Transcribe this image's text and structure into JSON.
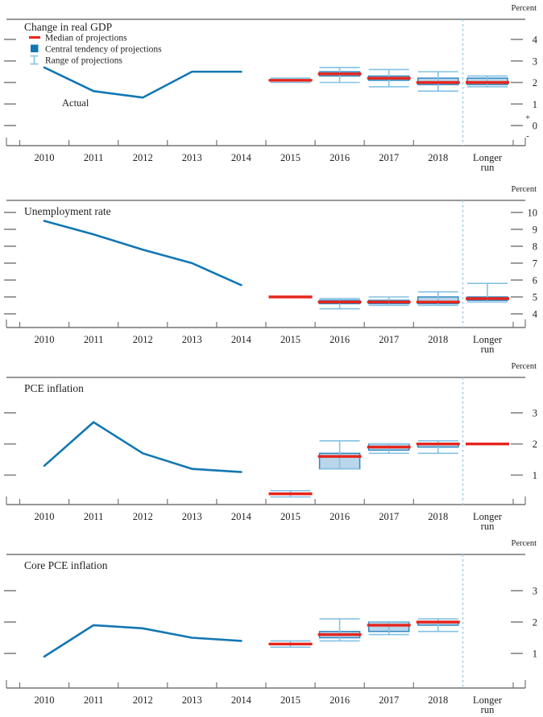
{
  "page": {
    "percent_label": "Percent",
    "plus_sign": "+",
    "minus_sign": "-"
  },
  "x_axis": {
    "years": [
      "2010",
      "2011",
      "2012",
      "2013",
      "2014",
      "2015",
      "2016",
      "2017",
      "2018"
    ],
    "longer_run_line1": "Longer",
    "longer_run_line2": "run"
  },
  "legend": {
    "median": "Median of projections",
    "central_tendency": "Central tendency of projections",
    "range": "Range of projections"
  },
  "colors": {
    "actual_line": "#1277b3",
    "median": "#e6251c",
    "box_fill": "#b9d6ea",
    "box_edge": "#3289c2",
    "whisker": "#82c2e4",
    "dashed_line": "#9fcde9",
    "axis": "#757575",
    "dash": "#8a8a8a",
    "text": "#1f1f1f"
  },
  "chart_data": [
    {
      "type": "line+boxplot",
      "title": "Change in real GDP",
      "unit": "Percent",
      "y_ticks": [
        4,
        3,
        2,
        1,
        0
      ],
      "zero_plus_minus": true,
      "actual": {
        "label": "Actual",
        "years": [
          "2010",
          "2011",
          "2012",
          "2013",
          "2014"
        ],
        "values": [
          2.7,
          1.6,
          1.3,
          2.5,
          2.5
        ]
      },
      "projections": [
        {
          "year": "2015",
          "median": 2.1,
          "central_tendency": [
            2.1,
            2.1
          ],
          "range": [
            2.0,
            2.2
          ]
        },
        {
          "year": "2016",
          "median": 2.4,
          "central_tendency": [
            2.3,
            2.5
          ],
          "range": [
            2.0,
            2.7
          ]
        },
        {
          "year": "2017",
          "median": 2.2,
          "central_tendency": [
            2.1,
            2.3
          ],
          "range": [
            1.8,
            2.6
          ]
        },
        {
          "year": "2018",
          "median": 2.0,
          "central_tendency": [
            1.9,
            2.2
          ],
          "range": [
            1.6,
            2.5
          ]
        },
        {
          "year": "Longer run",
          "median": 2.0,
          "central_tendency": [
            1.9,
            2.2
          ],
          "range": [
            1.8,
            2.3
          ]
        }
      ]
    },
    {
      "type": "line+boxplot",
      "title": "Unemployment rate",
      "unit": "Percent",
      "y_ticks": [
        10,
        9,
        8,
        7,
        6,
        5,
        4
      ],
      "zero_plus_minus": false,
      "actual": {
        "label": "",
        "years": [
          "2010",
          "2011",
          "2012",
          "2013",
          "2014"
        ],
        "values": [
          9.5,
          8.7,
          7.8,
          7.0,
          5.7
        ]
      },
      "projections": [
        {
          "year": "2015",
          "median": 5.0,
          "central_tendency": null,
          "range": null
        },
        {
          "year": "2016",
          "median": 4.7,
          "central_tendency": [
            4.6,
            4.8
          ],
          "range": [
            4.3,
            4.9
          ]
        },
        {
          "year": "2017",
          "median": 4.7,
          "central_tendency": [
            4.6,
            4.8
          ],
          "range": [
            4.5,
            5.0
          ]
        },
        {
          "year": "2018",
          "median": 4.7,
          "central_tendency": [
            4.6,
            5.0
          ],
          "range": [
            4.5,
            5.3
          ]
        },
        {
          "year": "Longer run",
          "median": 4.9,
          "central_tendency": [
            4.8,
            5.0
          ],
          "range": [
            4.7,
            5.8
          ]
        }
      ]
    },
    {
      "type": "line+boxplot",
      "title": "PCE inflation",
      "unit": "Percent",
      "y_ticks": [
        3,
        2,
        1
      ],
      "zero_plus_minus": false,
      "actual": {
        "label": "",
        "years": [
          "2010",
          "2011",
          "2012",
          "2013",
          "2014"
        ],
        "values": [
          1.3,
          2.7,
          1.7,
          1.2,
          1.1
        ]
      },
      "projections": [
        {
          "year": "2015",
          "median": 0.4,
          "central_tendency": [
            0.4,
            0.4
          ],
          "range": [
            0.3,
            0.5
          ]
        },
        {
          "year": "2016",
          "median": 1.6,
          "central_tendency": [
            1.2,
            1.7
          ],
          "range": [
            1.2,
            2.1
          ]
        },
        {
          "year": "2017",
          "median": 1.9,
          "central_tendency": [
            1.8,
            2.0
          ],
          "range": [
            1.7,
            2.0
          ]
        },
        {
          "year": "2018",
          "median": 2.0,
          "central_tendency": [
            1.9,
            2.0
          ],
          "range": [
            1.7,
            2.1
          ]
        },
        {
          "year": "Longer run",
          "median": 2.0,
          "central_tendency": null,
          "range": null
        }
      ]
    },
    {
      "type": "line+boxplot",
      "title": "Core PCE inflation",
      "unit": "Percent",
      "y_ticks": [
        3,
        2,
        1
      ],
      "zero_plus_minus": false,
      "actual": {
        "label": "",
        "years": [
          "2010",
          "2011",
          "2012",
          "2013",
          "2014"
        ],
        "values": [
          0.9,
          1.9,
          1.8,
          1.5,
          1.4
        ]
      },
      "projections": [
        {
          "year": "2015",
          "median": 1.3,
          "central_tendency": [
            1.3,
            1.3
          ],
          "range": [
            1.2,
            1.4
          ]
        },
        {
          "year": "2016",
          "median": 1.6,
          "central_tendency": [
            1.5,
            1.7
          ],
          "range": [
            1.4,
            2.1
          ]
        },
        {
          "year": "2017",
          "median": 1.9,
          "central_tendency": [
            1.7,
            2.0
          ],
          "range": [
            1.6,
            2.0
          ]
        },
        {
          "year": "2018",
          "median": 2.0,
          "central_tendency": [
            1.9,
            2.0
          ],
          "range": [
            1.7,
            2.1
          ]
        }
      ]
    }
  ]
}
